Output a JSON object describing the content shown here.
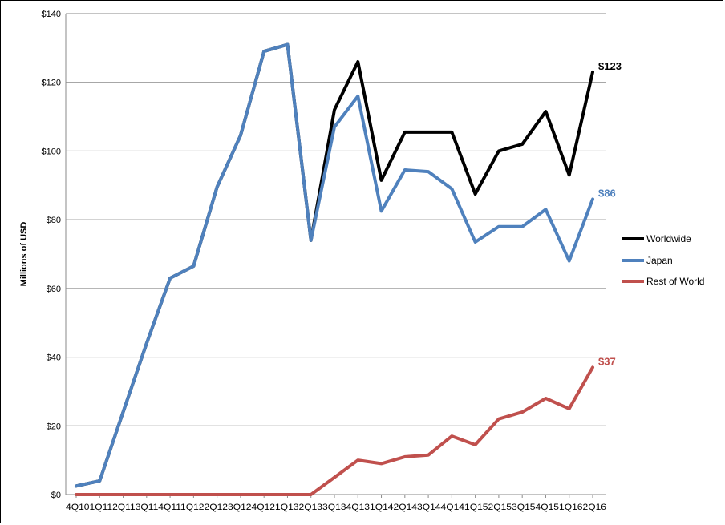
{
  "chart_data": {
    "type": "line",
    "title": "",
    "ylabel": "Millions of USD",
    "xlabel": "",
    "ylim": [
      0,
      140
    ],
    "y_ticks": [
      "$0",
      "$20",
      "$40",
      "$60",
      "$80",
      "$100",
      "$120",
      "$140"
    ],
    "y_tick_values": [
      0,
      20,
      40,
      60,
      80,
      100,
      120,
      140
    ],
    "grid": true,
    "legend_position": "right",
    "categories": [
      "4Q10",
      "1Q11",
      "2Q11",
      "3Q11",
      "4Q11",
      "1Q12",
      "2Q12",
      "3Q12",
      "4Q12",
      "1Q13",
      "2Q13",
      "3Q13",
      "4Q13",
      "1Q14",
      "2Q14",
      "3Q14",
      "4Q14",
      "1Q15",
      "2Q15",
      "3Q15",
      "4Q15",
      "1Q16",
      "2Q16"
    ],
    "category_label_text": "4Q101Q112Q113Q114Q111Q122Q123Q124Q121Q132Q133Q134Q131Q142Q143Q144Q141Q152Q153Q154Q151Q162Q16",
    "series": [
      {
        "name": "Worldwide",
        "color": "#000000",
        "end_label": "$123",
        "values": [
          2.5,
          4,
          24,
          44,
          63,
          66.5,
          89.5,
          104.5,
          129,
          131,
          74,
          112,
          126,
          91.5,
          105.5,
          105.5,
          105.5,
          87.5,
          100,
          102,
          111.5,
          93,
          123
        ]
      },
      {
        "name": "Japan",
        "color": "#4f81bd",
        "end_label": "$86",
        "values": [
          2.5,
          4,
          24,
          44,
          63,
          66.5,
          89.5,
          104.5,
          129,
          131,
          74,
          107,
          116,
          82.5,
          94.5,
          94,
          89,
          73.5,
          78,
          78,
          83,
          68,
          86
        ]
      },
      {
        "name": "Rest of World",
        "color": "#c0504d",
        "end_label": "$37",
        "values": [
          0,
          0,
          0,
          0,
          0,
          0,
          0,
          0,
          0,
          0,
          0,
          5,
          10,
          9,
          11,
          11.5,
          17,
          14.5,
          22,
          24,
          28,
          25,
          37
        ]
      }
    ]
  }
}
